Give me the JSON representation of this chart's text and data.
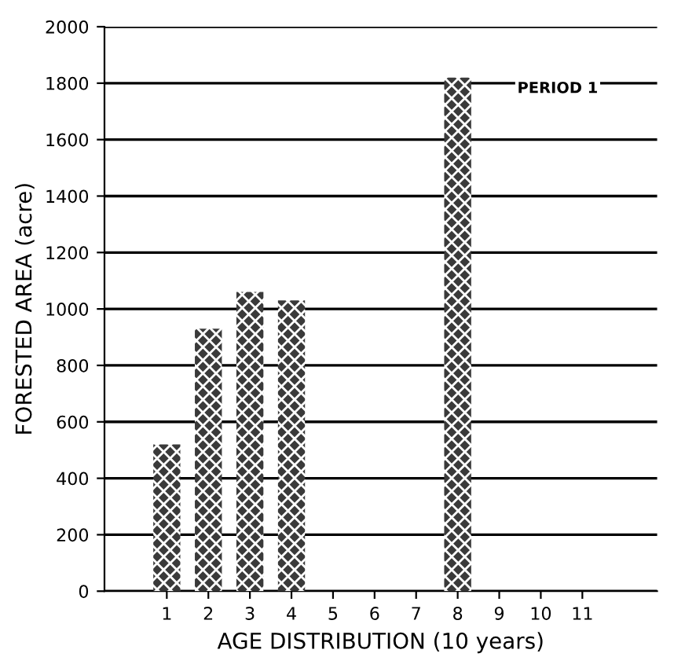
{
  "chart_data": {
    "type": "bar",
    "xlabel": "AGE DISTRIBUTION (10 years)",
    "ylabel": "FORESTED AREA (acre)",
    "categories": [
      "1",
      "2",
      "3",
      "4",
      "5",
      "6",
      "7",
      "8",
      "9",
      "10",
      "11"
    ],
    "values": [
      520,
      930,
      1060,
      1030,
      0,
      0,
      0,
      1820,
      0,
      0,
      0
    ],
    "color": "#3a3a3a",
    "ylim": [
      0,
      2000
    ],
    "yticks": [
      0,
      200,
      400,
      600,
      800,
      1000,
      1200,
      1400,
      1600,
      1800,
      2000
    ],
    "grid": "y",
    "annotations": [
      "PERIOD 1"
    ]
  }
}
